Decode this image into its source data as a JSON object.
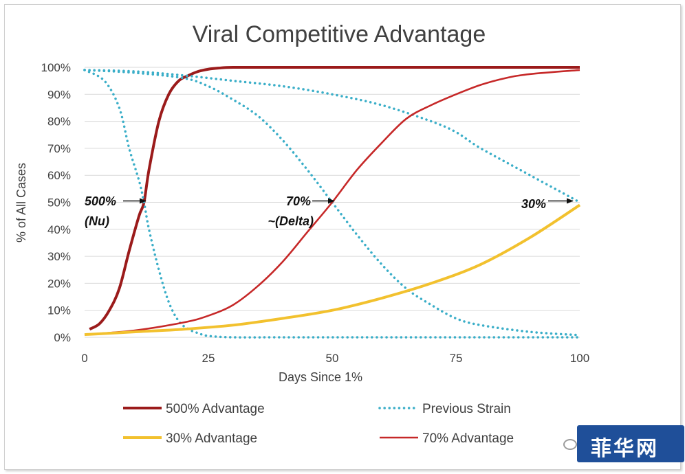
{
  "chart_data": {
    "type": "line",
    "title": "Viral Competitive Advantage",
    "xlabel": "Days Since 1%",
    "ylabel": "% of All Cases",
    "xlim": [
      0,
      100
    ],
    "ylim": [
      0,
      100
    ],
    "x_ticks": [
      "0",
      "25",
      "50",
      "75",
      "100"
    ],
    "y_ticks": [
      "0%",
      "10%",
      "20%",
      "30%",
      "40%",
      "50%",
      "60%",
      "70%",
      "80%",
      "90%",
      "100%"
    ],
    "grid": "horizontal",
    "legend_position": "bottom",
    "series": [
      {
        "name": "500% Advantage",
        "color": "#9b1b1b",
        "style": "solid-thick",
        "x": [
          1,
          3,
          5,
          7,
          9,
          11,
          12,
          13,
          15,
          17,
          19,
          21,
          23,
          25,
          27,
          30,
          40,
          60,
          80,
          100
        ],
        "y": [
          3,
          5,
          10,
          18,
          32,
          45,
          50,
          62,
          80,
          90,
          95,
          97,
          98.5,
          99.3,
          99.7,
          100,
          100,
          100,
          100,
          100
        ]
      },
      {
        "name": "Previous Strain",
        "color": "#3aaec8",
        "style": "dotted",
        "x": [
          0,
          4,
          7,
          9,
          11,
          12,
          13,
          15,
          17,
          19,
          21,
          23,
          25,
          30,
          40,
          60,
          80,
          100
        ],
        "y": [
          99,
          95,
          85,
          70,
          58,
          50,
          40,
          25,
          13,
          6,
          3,
          1.5,
          0.5,
          0,
          0,
          0,
          0,
          0
        ]
      },
      {
        "name": "Previous Strain",
        "color": "#3aaec8",
        "style": "dotted",
        "x": [
          0,
          10,
          20,
          25,
          30,
          35,
          40,
          45,
          50,
          55,
          60,
          65,
          70,
          75,
          80,
          90,
          100
        ],
        "y": [
          99,
          98,
          96,
          93,
          88,
          82,
          73,
          62,
          50,
          38,
          27,
          18,
          12,
          7,
          4.5,
          2,
          0.8
        ]
      },
      {
        "name": "Previous Strain",
        "color": "#3aaec8",
        "style": "dotted",
        "x": [
          0,
          10,
          20,
          30,
          40,
          50,
          60,
          70,
          75,
          80,
          90,
          100
        ],
        "y": [
          99,
          98.5,
          97,
          95,
          93,
          90,
          86,
          80,
          76,
          70,
          60,
          50
        ]
      },
      {
        "name": "70% Advantage",
        "color": "#c62828",
        "style": "solid",
        "x": [
          0,
          10,
          20,
          25,
          30,
          35,
          40,
          45,
          50,
          55,
          60,
          65,
          70,
          75,
          80,
          85,
          90,
          100
        ],
        "y": [
          1,
          2.5,
          5.5,
          8,
          12,
          19,
          28,
          39,
          50,
          62,
          72,
          81,
          86,
          90,
          93.5,
          96,
          97.5,
          99
        ]
      },
      {
        "name": "30% Advantage",
        "color": "#f2c12e",
        "style": "solid-thick",
        "x": [
          0,
          10,
          20,
          30,
          40,
          50,
          60,
          70,
          80,
          90,
          100
        ],
        "y": [
          1,
          2,
          3,
          4.5,
          7,
          10,
          14.5,
          20,
          27,
          37,
          49
        ]
      }
    ],
    "annotations": [
      {
        "line1": "500%",
        "line2": "(Nu)",
        "target_x": 12,
        "target_y": 50
      },
      {
        "line1": "70%",
        "line2": "~(Delta)",
        "target_x": 50,
        "target_y": 50
      },
      {
        "line1": "30%",
        "line2": "",
        "target_x": 100,
        "target_y": 50
      }
    ],
    "legend": [
      {
        "label": "500% Advantage",
        "color": "#9b1b1b",
        "style": "solid-thick"
      },
      {
        "label": "Previous Strain",
        "color": "#3aaec8",
        "style": "dotted"
      },
      {
        "label": "30% Advantage",
        "color": "#f2c12e",
        "style": "solid-thick"
      },
      {
        "label": "70% Advantage",
        "color": "#c62828",
        "style": "solid"
      }
    ]
  },
  "watermark": {
    "text": "菲华网",
    "color": "#1f4f99"
  }
}
